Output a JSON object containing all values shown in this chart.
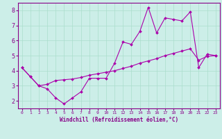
{
  "xlabel": "Windchill (Refroidissement éolien,°C)",
  "ylabel": "",
  "background_color": "#cceee8",
  "line_color": "#aa00aa",
  "xlim": [
    -0.5,
    23.5
  ],
  "ylim": [
    1.5,
    8.5
  ],
  "yticks": [
    2,
    3,
    4,
    5,
    6,
    7,
    8
  ],
  "xticks": [
    0,
    1,
    2,
    3,
    4,
    5,
    6,
    7,
    8,
    9,
    10,
    11,
    12,
    13,
    14,
    15,
    16,
    17,
    18,
    19,
    20,
    21,
    22,
    23
  ],
  "line1_x": [
    0,
    1,
    2,
    3,
    4,
    5,
    6,
    7,
    8,
    9,
    10,
    11,
    12,
    13,
    14,
    15,
    16,
    17,
    18,
    19,
    20,
    21,
    22,
    23
  ],
  "line1_y": [
    4.2,
    3.6,
    3.0,
    2.8,
    2.2,
    1.8,
    2.2,
    2.6,
    3.5,
    3.5,
    3.5,
    4.5,
    5.9,
    5.75,
    6.6,
    8.2,
    6.5,
    7.5,
    7.4,
    7.3,
    7.9,
    4.2,
    5.1,
    5.0
  ],
  "line2_x": [
    0,
    1,
    2,
    3,
    4,
    5,
    6,
    7,
    8,
    9,
    10,
    11,
    12,
    13,
    14,
    15,
    16,
    17,
    18,
    19,
    20,
    21,
    22,
    23
  ],
  "line2_y": [
    4.2,
    3.6,
    3.0,
    3.1,
    3.35,
    3.4,
    3.45,
    3.55,
    3.7,
    3.8,
    3.9,
    4.0,
    4.15,
    4.3,
    4.5,
    4.65,
    4.8,
    5.0,
    5.15,
    5.3,
    5.45,
    4.7,
    4.95,
    5.0
  ],
  "grid_color": "#aaddcc",
  "spine_color": "#880088",
  "tick_label_color": "#880088",
  "xlabel_fontsize": 5.5,
  "ytick_fontsize": 6.0,
  "xtick_fontsize": 4.5
}
